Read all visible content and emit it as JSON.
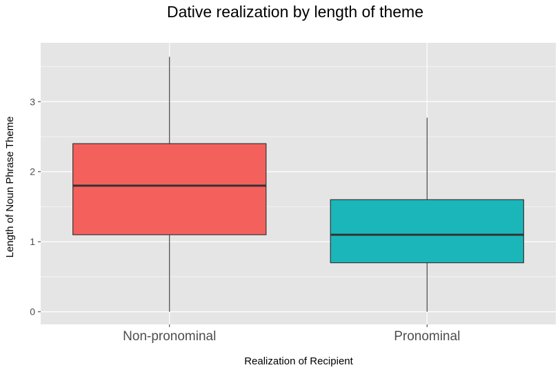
{
  "chart_data": {
    "type": "boxplot",
    "title": "Dative realization by length of theme",
    "xlabel": "Realization of Recipient",
    "ylabel": "Length of Noun Phrase Theme",
    "categories": [
      "Non-pronominal",
      "Pronominal"
    ],
    "boxes": [
      {
        "category": "Non-pronominal",
        "min": 0.0,
        "q1": 1.1,
        "median": 1.8,
        "q3": 2.4,
        "max": 3.64
      },
      {
        "category": "Pronominal",
        "min": 0.0,
        "q1": 0.7,
        "median": 1.1,
        "q3": 1.6,
        "max": 2.77
      }
    ],
    "ylim": [
      -0.18,
      3.84
    ],
    "yticks": [
      0,
      1,
      2,
      3
    ],
    "grid": true,
    "legend": "none",
    "colors": {
      "panel": "#e5e5e5",
      "grid": "#ffffff",
      "box_fills": [
        "#f4615d",
        "#1bb6ba"
      ],
      "box_line": "#333333"
    }
  }
}
